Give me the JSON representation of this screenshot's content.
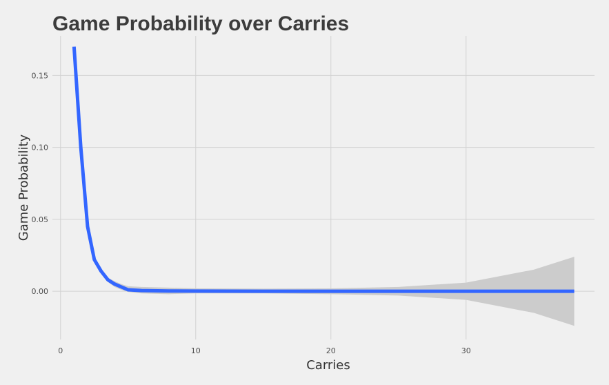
{
  "chart_data": {
    "type": "line",
    "title": "Game Probability over Carries",
    "xlabel": "Carries",
    "ylabel": "Game Probability",
    "xlim": [
      -0.6,
      39.5
    ],
    "ylim": [
      -0.0335,
      0.1775
    ],
    "x_ticks": [
      0,
      10,
      20,
      30
    ],
    "x_tick_labels": [
      "0",
      "10",
      "20",
      "30"
    ],
    "y_ticks": [
      0.0,
      0.05,
      0.1,
      0.15
    ],
    "y_tick_labels": [
      "0.00",
      "0.05",
      "0.10",
      "0.15"
    ],
    "grid": true,
    "legend": "none",
    "line_color": "#3366ff",
    "band_color": "#cccccc",
    "series": [
      {
        "x": [
          1,
          1.5,
          2,
          2.5,
          3,
          3.5,
          4,
          4.5,
          5,
          6,
          8,
          10,
          15,
          20,
          25,
          30,
          35,
          38
        ],
        "y": [
          0.17,
          0.1,
          0.045,
          0.022,
          0.014,
          0.008,
          0.005,
          0.003,
          0.001,
          0.0005,
          0.0002,
          0.0001,
          0.0,
          0.0,
          0.0,
          0.0,
          0.0,
          0.0
        ],
        "lower": [
          0.17,
          0.1,
          0.045,
          0.021,
          0.0125,
          0.0065,
          0.003,
          0.001,
          -0.0005,
          -0.0015,
          -0.002,
          -0.0015,
          -0.0015,
          -0.002,
          -0.003,
          -0.006,
          -0.015,
          -0.024
        ],
        "upper": [
          0.17,
          0.1,
          0.045,
          0.023,
          0.0155,
          0.0095,
          0.007,
          0.005,
          0.0035,
          0.003,
          0.0025,
          0.002,
          0.0018,
          0.002,
          0.003,
          0.006,
          0.015,
          0.024
        ]
      }
    ]
  }
}
